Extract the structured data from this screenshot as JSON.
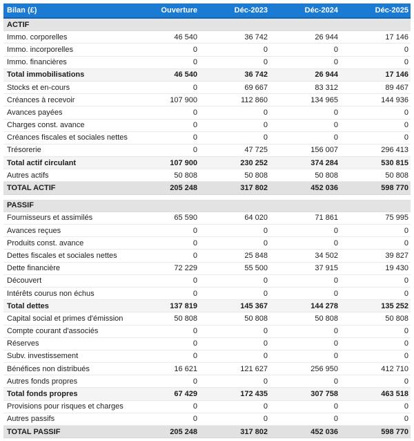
{
  "colors": {
    "header_bg": "#1b7ad2",
    "header_border": "#1262b3",
    "section_bg": "#e3e3e3",
    "subtotal_bg": "#f4f4f4",
    "grandtotal_bg": "#e1e1e1"
  },
  "table": {
    "columns": [
      "Bilan (£)",
      "Ouverture",
      "Déc-2023",
      "Déc-2024",
      "Déc-2025"
    ],
    "rows": [
      {
        "type": "section",
        "label": "ACTIF",
        "values": [
          "",
          "",
          "",
          ""
        ]
      },
      {
        "type": "normal",
        "label": "Immo. corporelles",
        "values": [
          "46 540",
          "36 742",
          "26 944",
          "17 146"
        ]
      },
      {
        "type": "normal",
        "label": "Immo. incorporelles",
        "values": [
          "0",
          "0",
          "0",
          "0"
        ]
      },
      {
        "type": "normal",
        "label": "Immo. financières",
        "values": [
          "0",
          "0",
          "0",
          "0"
        ]
      },
      {
        "type": "subtotal",
        "label": "Total immobilisations",
        "values": [
          "46 540",
          "36 742",
          "26 944",
          "17 146"
        ]
      },
      {
        "type": "normal",
        "label": "Stocks et en-cours",
        "values": [
          "0",
          "69 667",
          "83 312",
          "89 467"
        ]
      },
      {
        "type": "normal",
        "label": "Créances à recevoir",
        "values": [
          "107 900",
          "112 860",
          "134 965",
          "144 936"
        ]
      },
      {
        "type": "normal",
        "label": "Avances payées",
        "values": [
          "0",
          "0",
          "0",
          "0"
        ]
      },
      {
        "type": "normal",
        "label": "Charges const. avance",
        "values": [
          "0",
          "0",
          "0",
          "0"
        ]
      },
      {
        "type": "normal",
        "label": "Créances fiscales et sociales nettes",
        "values": [
          "0",
          "0",
          "0",
          "0"
        ]
      },
      {
        "type": "normal",
        "label": "Trésorerie",
        "values": [
          "0",
          "47 725",
          "156 007",
          "296 413"
        ]
      },
      {
        "type": "subtotal",
        "label": "Total actif circulant",
        "values": [
          "107 900",
          "230 252",
          "374 284",
          "530 815"
        ]
      },
      {
        "type": "normal",
        "label": "Autres actifs",
        "values": [
          "50 808",
          "50 808",
          "50 808",
          "50 808"
        ]
      },
      {
        "type": "grandtotal",
        "label": "TOTAL ACTIF",
        "values": [
          "205 248",
          "317 802",
          "452 036",
          "598 770"
        ]
      },
      {
        "type": "gap"
      },
      {
        "type": "section",
        "label": "PASSIF",
        "values": [
          "",
          "",
          "",
          ""
        ]
      },
      {
        "type": "normal",
        "label": "Fournisseurs et assimilés",
        "values": [
          "65 590",
          "64 020",
          "71 861",
          "75 995"
        ]
      },
      {
        "type": "normal",
        "label": "Avances reçues",
        "values": [
          "0",
          "0",
          "0",
          "0"
        ]
      },
      {
        "type": "normal",
        "label": "Produits const. avance",
        "values": [
          "0",
          "0",
          "0",
          "0"
        ]
      },
      {
        "type": "normal",
        "label": "Dettes fiscales et sociales nettes",
        "values": [
          "0",
          "25 848",
          "34 502",
          "39 827"
        ]
      },
      {
        "type": "normal",
        "label": "Dette financière",
        "values": [
          "72 229",
          "55 500",
          "37 915",
          "19 430"
        ]
      },
      {
        "type": "normal",
        "label": "Découvert",
        "values": [
          "0",
          "0",
          "0",
          "0"
        ]
      },
      {
        "type": "normal",
        "label": "Intérêts courus non échus",
        "values": [
          "0",
          "0",
          "0",
          "0"
        ]
      },
      {
        "type": "subtotal",
        "label": "Total dettes",
        "values": [
          "137 819",
          "145 367",
          "144 278",
          "135 252"
        ]
      },
      {
        "type": "normal",
        "label": "Capital social et primes d'émission",
        "values": [
          "50 808",
          "50 808",
          "50 808",
          "50 808"
        ]
      },
      {
        "type": "normal",
        "label": "Compte courant d'associés",
        "values": [
          "0",
          "0",
          "0",
          "0"
        ]
      },
      {
        "type": "normal",
        "label": "Réserves",
        "values": [
          "0",
          "0",
          "0",
          "0"
        ]
      },
      {
        "type": "normal",
        "label": "Subv. investissement",
        "values": [
          "0",
          "0",
          "0",
          "0"
        ]
      },
      {
        "type": "normal",
        "label": "Bénéfices non distribués",
        "values": [
          "16 621",
          "121 627",
          "256 950",
          "412 710"
        ]
      },
      {
        "type": "normal",
        "label": "Autres fonds propres",
        "values": [
          "0",
          "0",
          "0",
          "0"
        ]
      },
      {
        "type": "subtotal",
        "label": "Total fonds propres",
        "values": [
          "67 429",
          "172 435",
          "307 758",
          "463 518"
        ]
      },
      {
        "type": "normal",
        "label": "Provisions pour risques et charges",
        "values": [
          "0",
          "0",
          "0",
          "0"
        ]
      },
      {
        "type": "normal",
        "label": "Autres passifs",
        "values": [
          "0",
          "0",
          "0",
          "0"
        ]
      },
      {
        "type": "grandtotal",
        "label": "TOTAL PASSIF",
        "values": [
          "205 248",
          "317 802",
          "452 036",
          "598 770"
        ]
      }
    ]
  }
}
